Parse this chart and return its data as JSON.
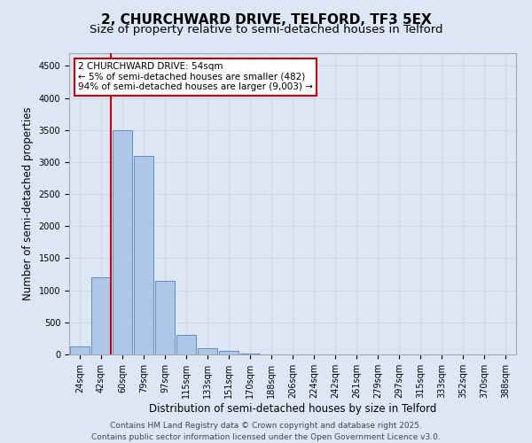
{
  "title_line1": "2, CHURCHWARD DRIVE, TELFORD, TF3 5EX",
  "title_line2": "Size of property relative to semi-detached houses in Telford",
  "xlabel": "Distribution of semi-detached houses by size in Telford",
  "ylabel": "Number of semi-detached properties",
  "bins": [
    "24sqm",
    "42sqm",
    "60sqm",
    "79sqm",
    "97sqm",
    "115sqm",
    "133sqm",
    "151sqm",
    "170sqm",
    "188sqm",
    "206sqm",
    "224sqm",
    "242sqm",
    "261sqm",
    "279sqm",
    "297sqm",
    "315sqm",
    "333sqm",
    "352sqm",
    "370sqm",
    "388sqm"
  ],
  "values": [
    120,
    1200,
    3500,
    3100,
    1150,
    310,
    100,
    55,
    15,
    5,
    2,
    1,
    0,
    0,
    0,
    0,
    0,
    0,
    0,
    0,
    0
  ],
  "bar_color": "#aec6e8",
  "bar_edge_color": "#5a8fc0",
  "grid_color": "#d0d8e8",
  "background_color": "#dce6f5",
  "annotation_title": "2 CHURCHWARD DRIVE: 54sqm",
  "annotation_line1": "← 5% of semi-detached houses are smaller (482)",
  "annotation_line2": "94% of semi-detached houses are larger (9,003) →",
  "annotation_box_color": "#ffffff",
  "annotation_box_edge": "#cc0000",
  "red_line_color": "#cc0000",
  "ylim": [
    0,
    4700
  ],
  "yticks": [
    0,
    500,
    1000,
    1500,
    2000,
    2500,
    3000,
    3500,
    4000,
    4500
  ],
  "footer_line1": "Contains HM Land Registry data © Crown copyright and database right 2025.",
  "footer_line2": "Contains public sector information licensed under the Open Government Licence v3.0.",
  "title_fontsize": 11,
  "subtitle_fontsize": 9.5,
  "axis_label_fontsize": 8.5,
  "tick_fontsize": 7,
  "annotation_fontsize": 7.5,
  "footer_fontsize": 6.5
}
